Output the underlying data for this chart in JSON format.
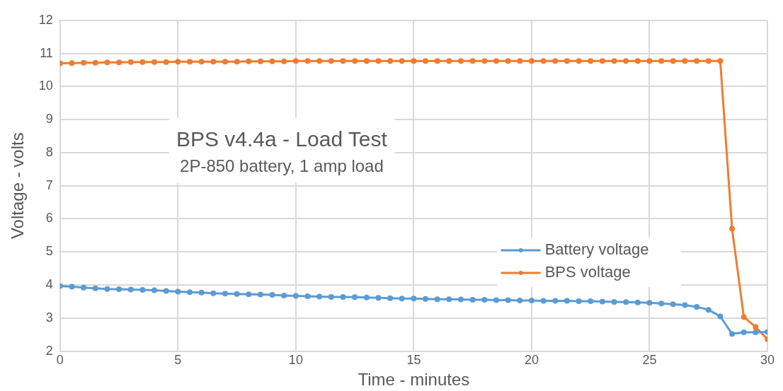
{
  "chart_data": {
    "type": "line",
    "title": "BPS v4.4a - Load Test",
    "subtitle": "2P-850 battery, 1 amp load",
    "xlabel": "Time - minutes",
    "ylabel": "Voltage - volts",
    "x": [
      0,
      0.5,
      1,
      1.5,
      2,
      2.5,
      3,
      3.5,
      4,
      4.5,
      5,
      5.5,
      6,
      6.5,
      7,
      7.5,
      8,
      8.5,
      9,
      9.5,
      10,
      10.5,
      11,
      11.5,
      12,
      12.5,
      13,
      13.5,
      14,
      14.5,
      15,
      15.5,
      16,
      16.5,
      17,
      17.5,
      18,
      18.5,
      19,
      19.5,
      20,
      20.5,
      21,
      21.5,
      22,
      22.5,
      23,
      23.5,
      24,
      24.5,
      25,
      25.5,
      26,
      26.5,
      27,
      27.5,
      28,
      28.5,
      29,
      29.5,
      30
    ],
    "series": [
      {
        "name": "Battery voltage",
        "color": "#5b9bd5",
        "values": [
          3.97,
          3.95,
          3.92,
          3.9,
          3.88,
          3.87,
          3.86,
          3.85,
          3.84,
          3.82,
          3.8,
          3.78,
          3.77,
          3.75,
          3.74,
          3.73,
          3.72,
          3.71,
          3.7,
          3.68,
          3.67,
          3.66,
          3.65,
          3.64,
          3.64,
          3.63,
          3.62,
          3.61,
          3.6,
          3.59,
          3.59,
          3.58,
          3.57,
          3.57,
          3.56,
          3.55,
          3.55,
          3.54,
          3.54,
          3.53,
          3.53,
          3.52,
          3.52,
          3.52,
          3.51,
          3.51,
          3.5,
          3.49,
          3.48,
          3.47,
          3.46,
          3.44,
          3.42,
          3.39,
          3.34,
          3.25,
          3.05,
          2.52,
          2.57,
          2.57,
          2.58
        ]
      },
      {
        "name": "BPS voltage",
        "color": "#ed7d31",
        "values": [
          10.7,
          10.71,
          10.72,
          10.72,
          10.73,
          10.73,
          10.74,
          10.74,
          10.74,
          10.74,
          10.75,
          10.75,
          10.75,
          10.75,
          10.75,
          10.75,
          10.76,
          10.76,
          10.76,
          10.76,
          10.77,
          10.77,
          10.77,
          10.77,
          10.77,
          10.77,
          10.77,
          10.77,
          10.77,
          10.77,
          10.77,
          10.77,
          10.77,
          10.77,
          10.77,
          10.77,
          10.77,
          10.77,
          10.77,
          10.77,
          10.77,
          10.77,
          10.77,
          10.77,
          10.77,
          10.77,
          10.77,
          10.77,
          10.77,
          10.77,
          10.77,
          10.77,
          10.77,
          10.77,
          10.77,
          10.77,
          10.77,
          5.7,
          3.03,
          2.73,
          2.36
        ]
      }
    ],
    "xlim": [
      0,
      30
    ],
    "xticks": [
      0,
      5,
      10,
      15,
      20,
      25,
      30
    ],
    "ylim": [
      2,
      12
    ],
    "yticks": [
      2,
      3,
      4,
      5,
      6,
      7,
      8,
      9,
      10,
      11,
      12
    ],
    "grid": true,
    "legend": "right",
    "marker": "circle",
    "line_style": "solid"
  }
}
